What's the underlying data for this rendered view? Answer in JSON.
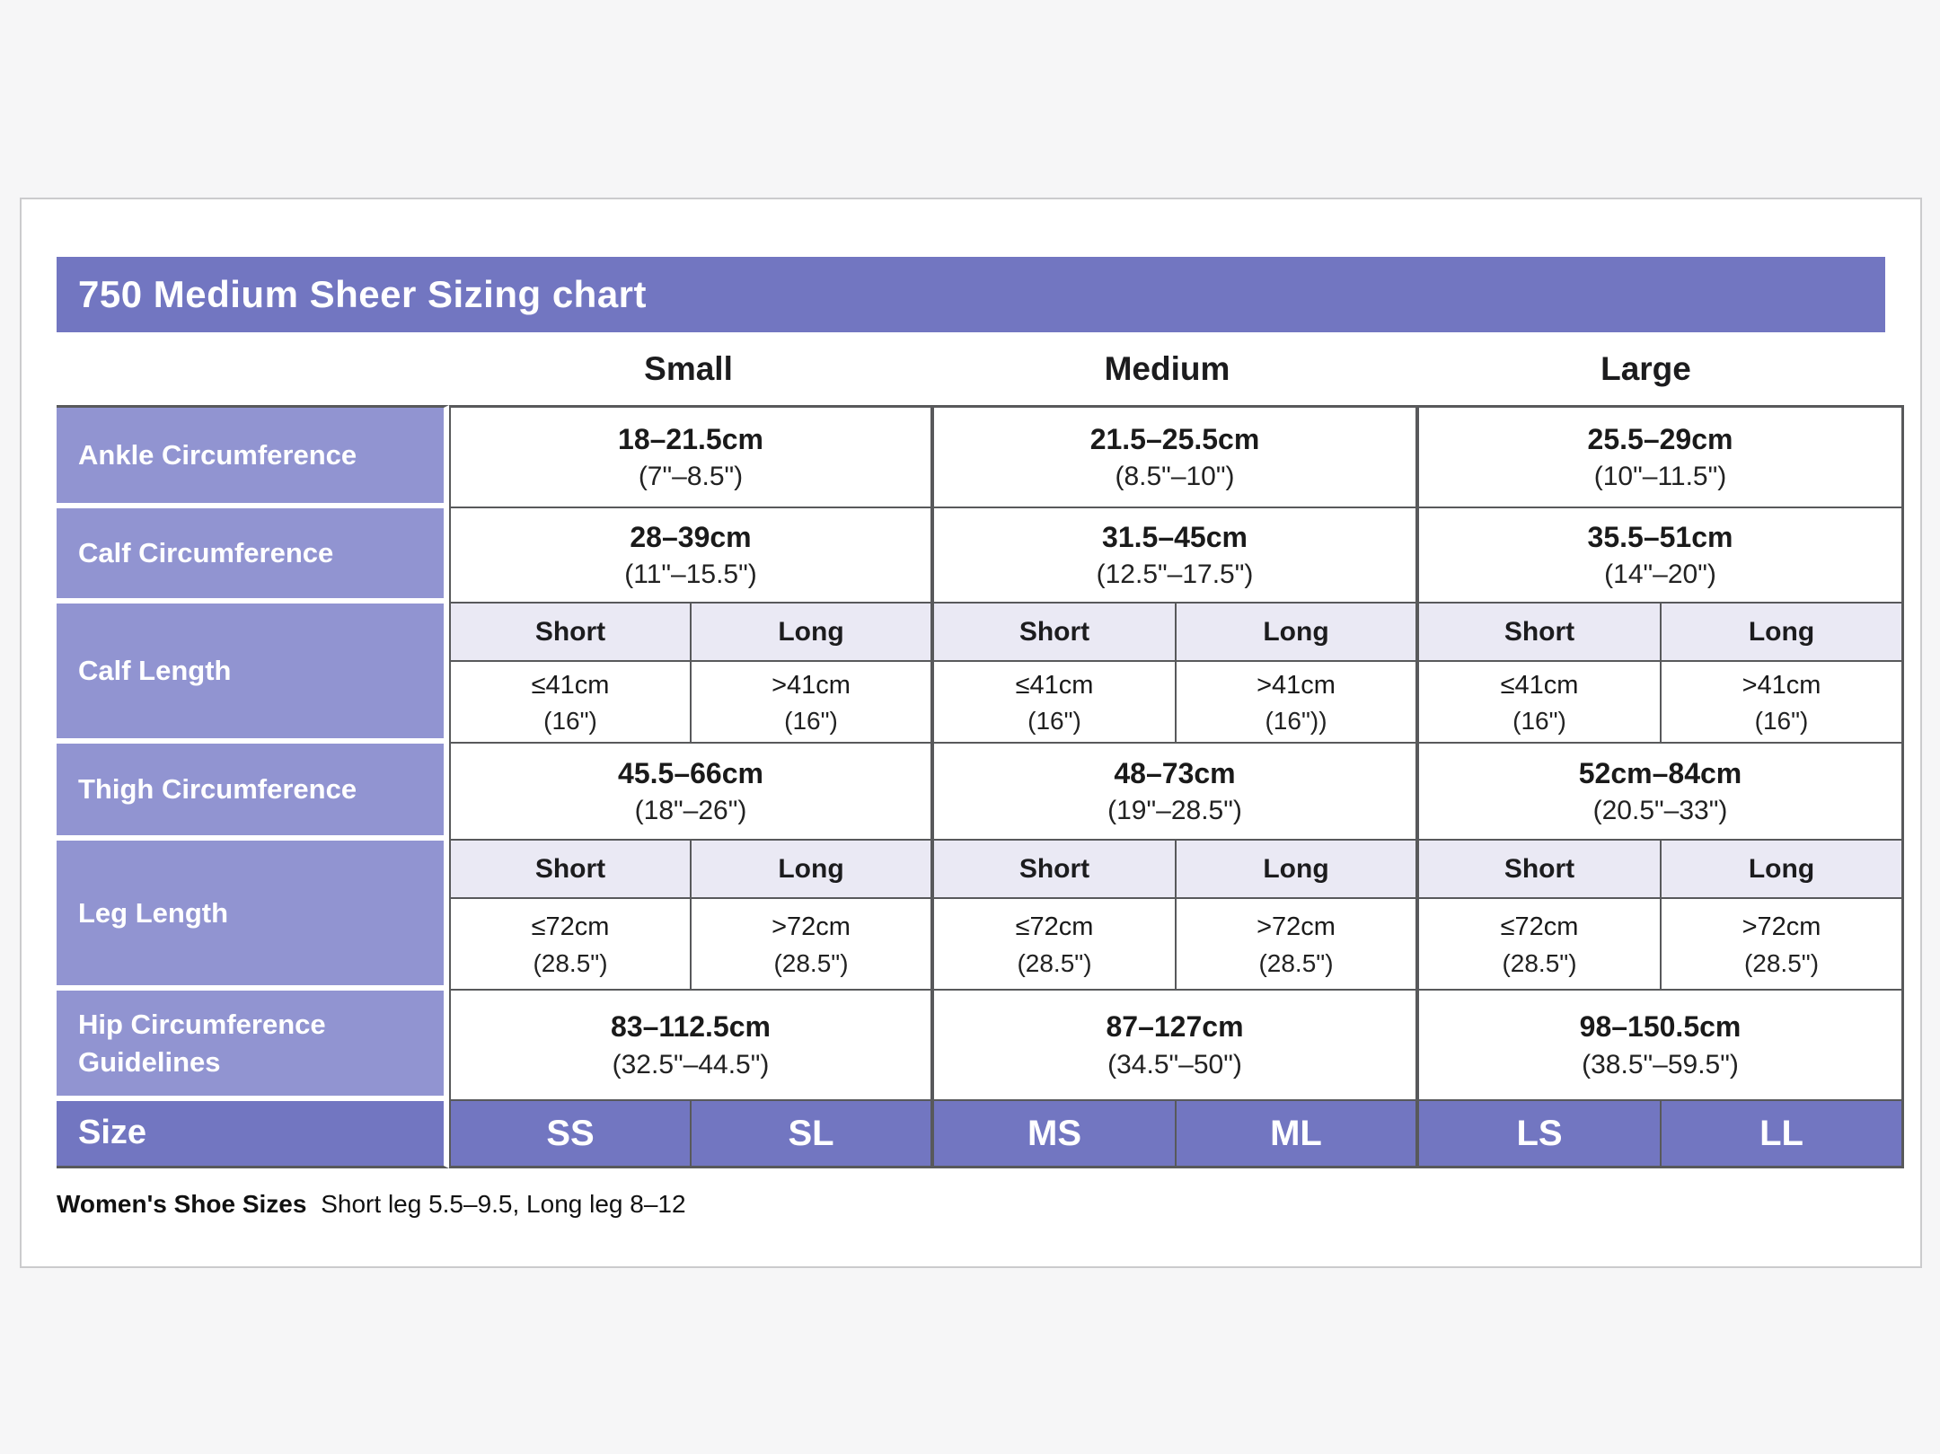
{
  "title": "750 Medium Sheer Sizing chart",
  "colors": {
    "header_purple": "#7276c1",
    "label_purple": "#9194d1",
    "subheader_lavender": "#eae9f4",
    "border_dark": "#58595b",
    "card_background": "#ffffff"
  },
  "table": {
    "groups": [
      "Small",
      "Medium",
      "Large"
    ],
    "rows": {
      "ankle": {
        "label": "Ankle Circumference",
        "cells": [
          {
            "cm": "18–21.5cm",
            "in": "(7\"–8.5\")"
          },
          {
            "cm": "21.5–25.5cm",
            "in": "(8.5\"–10\")"
          },
          {
            "cm": "25.5–29cm",
            "in": "(10\"–11.5\")"
          }
        ]
      },
      "calf_circumference": {
        "label": "Calf Circumference",
        "cells": [
          {
            "cm": "28–39cm",
            "in": "(11\"–15.5\")"
          },
          {
            "cm": "31.5–45cm",
            "in": "(12.5\"–17.5\")"
          },
          {
            "cm": "35.5–51cm",
            "in": "(14\"–20\")"
          }
        ]
      },
      "calf_length": {
        "label": "Calf Length",
        "headers": [
          "Short",
          "Long",
          "Short",
          "Long",
          "Short",
          "Long"
        ],
        "cells": [
          {
            "cm": "≤41cm",
            "in": "(16\")"
          },
          {
            "cm": ">41cm",
            "in": "(16\")"
          },
          {
            "cm": "≤41cm",
            "in": "(16\")"
          },
          {
            "cm": ">41cm",
            "in": "(16\"))"
          },
          {
            "cm": "≤41cm",
            "in": "(16\")"
          },
          {
            "cm": ">41cm",
            "in": "(16\")"
          }
        ]
      },
      "thigh": {
        "label": "Thigh Circumference",
        "cells": [
          {
            "cm": "45.5–66cm",
            "in": "(18\"–26\")"
          },
          {
            "cm": "48–73cm",
            "in": "(19\"–28.5\")"
          },
          {
            "cm": "52cm–84cm",
            "in": "(20.5\"–33\")"
          }
        ]
      },
      "leg_length": {
        "label": "Leg Length",
        "headers": [
          "Short",
          "Long",
          "Short",
          "Long",
          "Short",
          "Long"
        ],
        "cells": [
          {
            "cm": "≤72cm",
            "in": "(28.5\")"
          },
          {
            "cm": ">72cm",
            "in": "(28.5\")"
          },
          {
            "cm": "≤72cm",
            "in": "(28.5\")"
          },
          {
            "cm": ">72cm",
            "in": "(28.5\")"
          },
          {
            "cm": "≤72cm",
            "in": "(28.5\")"
          },
          {
            "cm": ">72cm",
            "in": "(28.5\")"
          }
        ]
      },
      "hip": {
        "label": "Hip Circumference Guidelines",
        "cells": [
          {
            "cm": "83–112.5cm",
            "in": "(32.5\"–44.5\")"
          },
          {
            "cm": "87–127cm",
            "in": "(34.5\"–50\")"
          },
          {
            "cm": "98–150.5cm",
            "in": "(38.5\"–59.5\")"
          }
        ]
      },
      "size": {
        "label": "Size",
        "cells": [
          "SS",
          "SL",
          "MS",
          "ML",
          "LS",
          "LL"
        ]
      }
    }
  },
  "footnote": {
    "lead": "Women's Shoe Sizes",
    "text": "Short leg 5.5–9.5, Long leg 8–12"
  }
}
